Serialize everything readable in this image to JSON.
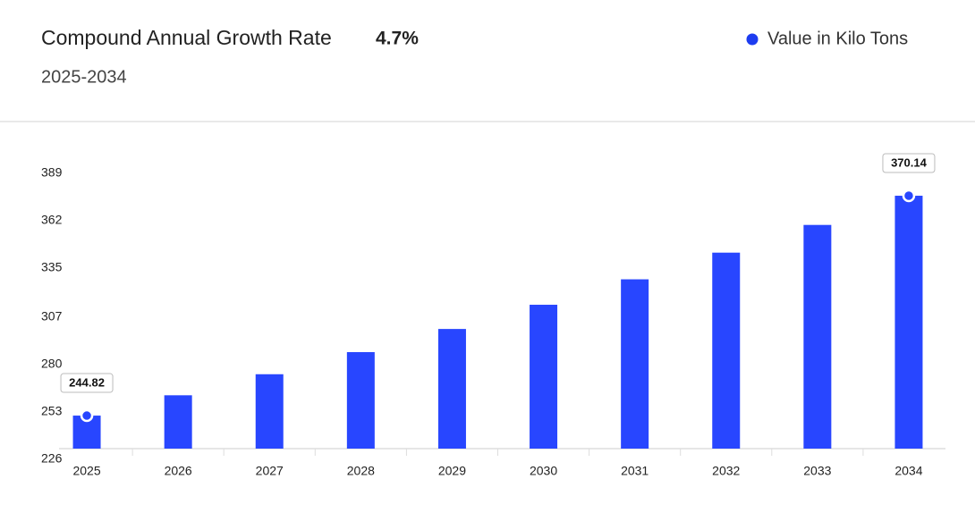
{
  "chart_data": {
    "type": "bar",
    "title": "Compound Annual Growth Rate",
    "cagr": "4.7%",
    "subtitle": "2025-2034",
    "legend": "Value in Kilo Tons",
    "color": "#2846ff",
    "categories": [
      "2025",
      "2026",
      "2027",
      "2028",
      "2029",
      "2030",
      "2031",
      "2032",
      "2033",
      "2034"
    ],
    "values": [
      244.82,
      256.4,
      268.4,
      281.0,
      294.2,
      308.0,
      322.5,
      337.7,
      353.5,
      370.14
    ],
    "ylim": [
      226,
      389
    ],
    "yticks": [
      226,
      253,
      280,
      307,
      335,
      362,
      389
    ]
  }
}
